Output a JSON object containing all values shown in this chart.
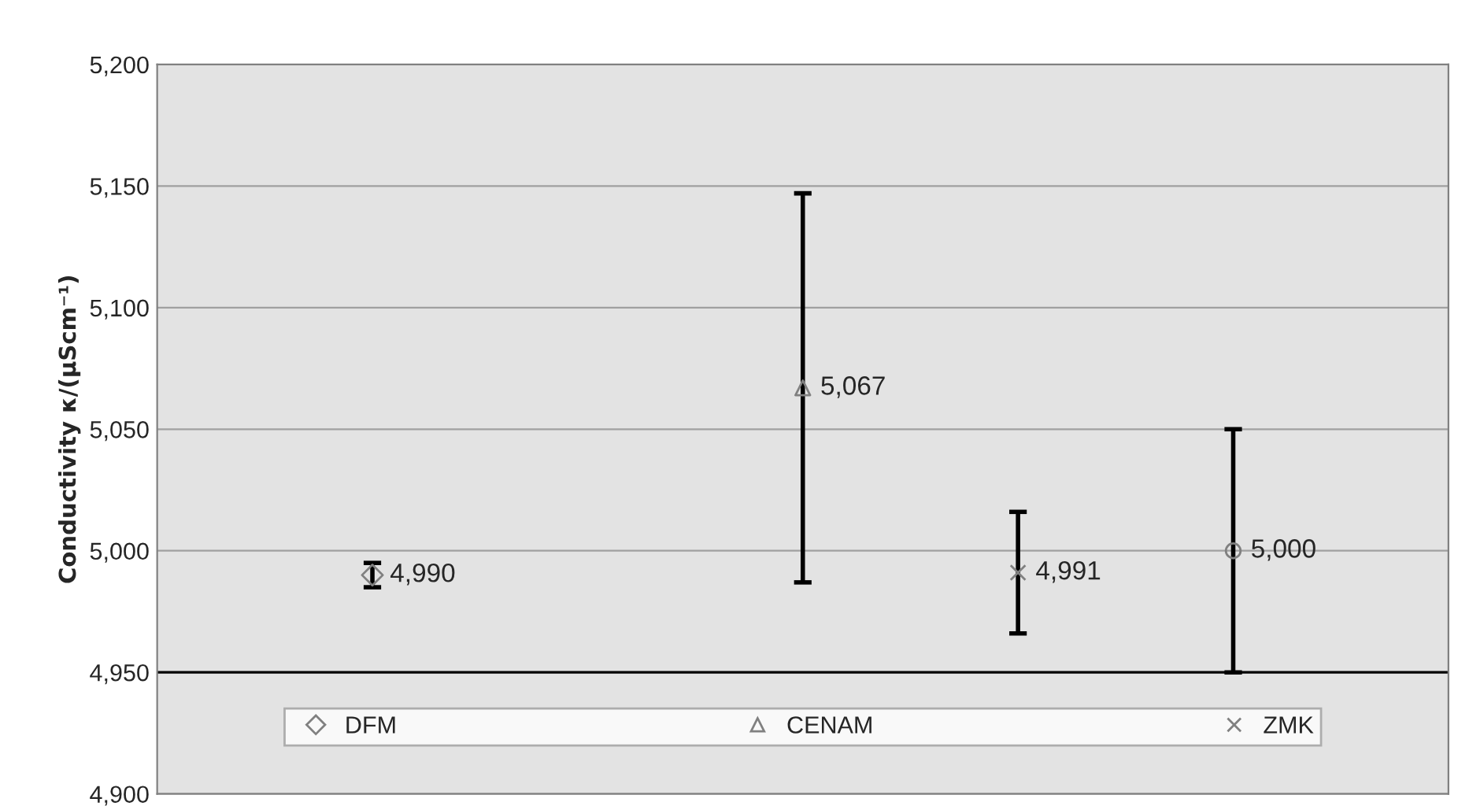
{
  "chart_data": {
    "type": "scatter",
    "ylabel": "Conductivity κ/(μScm⁻¹)",
    "categories": [
      null,
      null,
      null,
      null,
      null,
      null,
      null
    ],
    "series": [
      {
        "name": "DFM",
        "color": "#808080",
        "marker": "diamond",
        "values": [
          null,
          4990,
          null,
          null,
          null,
          null,
          null
        ],
        "errors": [
          null,
          5,
          null,
          null,
          null,
          null,
          null
        ],
        "value_labels": [
          null,
          "4,990",
          null,
          null,
          null,
          null,
          null
        ]
      },
      {
        "name": "CENAM",
        "color": "#808080",
        "marker": "triangle",
        "values": [
          null,
          null,
          null,
          5067,
          null,
          null,
          null
        ],
        "errors": [
          null,
          null,
          null,
          80,
          null,
          null,
          null
        ],
        "value_labels": [
          null,
          null,
          null,
          "5,067",
          null,
          null,
          null
        ]
      },
      {
        "name": "ZMK",
        "color": "#808080",
        "marker": "cross",
        "values": [
          null,
          null,
          null,
          null,
          4991,
          null,
          null
        ],
        "errors": [
          null,
          null,
          null,
          null,
          25,
          null,
          null
        ],
        "value_labels": [
          null,
          null,
          null,
          null,
          "4,991",
          null,
          null
        ]
      },
      {
        "color": "#808080",
        "marker": "circle",
        "values": [
          null,
          null,
          null,
          null,
          null,
          5000,
          null
        ],
        "errors": [
          null,
          null,
          null,
          null,
          null,
          50,
          null
        ],
        "value_labels": [
          null,
          null,
          null,
          null,
          null,
          "5,000",
          null
        ]
      }
    ],
    "ylim": [
      4900,
      5200
    ],
    "yticks": [
      {
        "value": 4900,
        "label": "4,900"
      },
      {
        "value": 4950,
        "label": "4,950"
      },
      {
        "value": 5000,
        "label": "5,000"
      },
      {
        "value": 5050,
        "label": "5,050"
      },
      {
        "value": 5100,
        "label": "5,100"
      },
      {
        "value": 5150,
        "label": "5,150"
      },
      {
        "value": 5200,
        "label": "5,200"
      }
    ],
    "grid": "y",
    "ref_lines": [
      {
        "axis": "y",
        "value": 4950,
        "color": "#000000"
      }
    ],
    "legend": "bottom"
  }
}
